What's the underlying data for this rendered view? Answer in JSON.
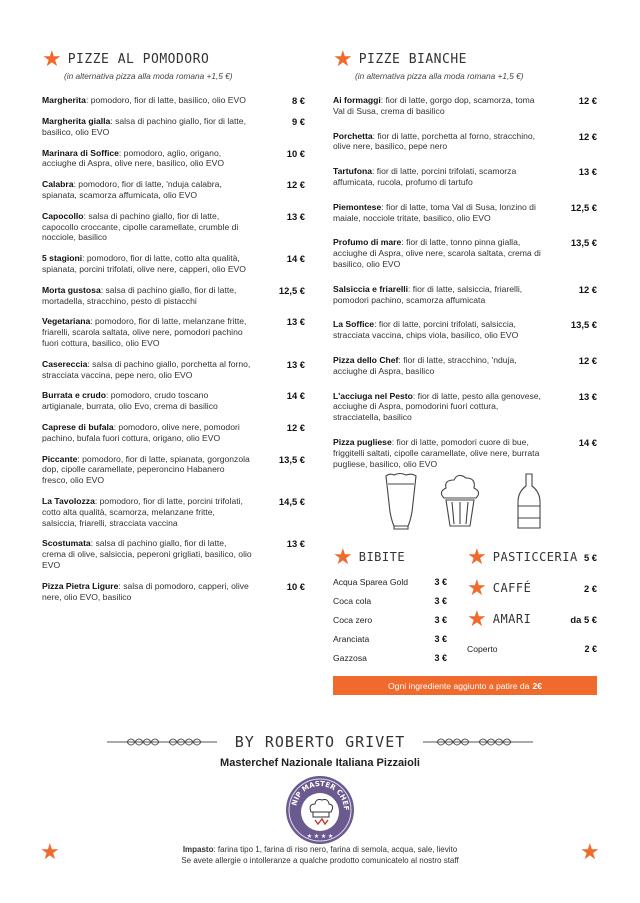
{
  "pizze_al_pomodoro": {
    "title": "Pizze al pomodoro",
    "subtitle": "(in alternativa pizza alla moda romana +1,5 €)",
    "items": [
      {
        "name": "Margherita",
        "desc": ": pomodoro, fior di latte, basilico, olio EVO",
        "price": "8 €"
      },
      {
        "name": "Margherita gialla",
        "desc": ": salsa di pachino giallo, fior di latte, basilico, olio EVO",
        "price": "9 €"
      },
      {
        "name": "Marinara di Soffice",
        "desc": ": pomodoro, aglio, origano, acciughe di Aspra, olive nere, basilico, olio EVO",
        "price": "10 €"
      },
      {
        "name": "Calabra",
        "desc": ": pomodoro, fior di latte, 'nduja calabra, spianata, scamorza affumicata, olio EVO",
        "price": "12 €"
      },
      {
        "name": "Capocollo",
        "desc": ": salsa di pachino giallo, fior di latte, capocollo croccante, cipolle caramellate, crumble di nocciole, basilico",
        "price": "13 €"
      },
      {
        "name": "5 stagioni",
        "desc": ": pomodoro, fior di latte, cotto alta qualità, spianata, porcini trifolati, olive nere, capperi, olio EVO",
        "price": "14 €"
      },
      {
        "name": "Morta gustosa",
        "desc": ": salsa di pachino giallo, fior di latte, mortadella, stracchino, pesto di pistacchi",
        "price": "12,5 €"
      },
      {
        "name": "Vegetariana",
        "desc": ": pomodoro, fior di latte, melanzane fritte, friarelli, scarola saltata, olive nere, pomodori pachino fuori cottura, basilico, olio EVO",
        "price": "13 €"
      },
      {
        "name": "Casereccia",
        "desc": ": salsa di pachino giallo, porchetta al forno, stracciata vaccina, pepe nero, olio EVO",
        "price": "13 €"
      },
      {
        "name": "Burrata e crudo",
        "desc": ": pomodoro, crudo toscano artigianale, burrata, olio Evo, crema di basilico",
        "price": "14 €"
      },
      {
        "name": "Caprese di bufala",
        "desc": ": pomodoro, olive nere, pomodori pachino, bufala fuori cottura, origano, olio EVO",
        "price": "12 €"
      },
      {
        "name": "Piccante",
        "desc": ": pomodoro, fior di latte, spianata, gorgonzola dop, cipolle caramellate, peperoncino Habanero fresco, olio EVO",
        "price": "13,5 €"
      },
      {
        "name": "La Tavolozza",
        "desc": ": pomodoro, fior di latte, porcini trifolati, cotto alta qualità, scamorza, melanzane fritte, salsiccia, friarelli, stracciata vaccina",
        "price": "14,5 €"
      },
      {
        "name": "Scostumata",
        "desc": ": salsa di pachino giallo, fior di latte, crema di olive, salsiccia, peperoni grigliati, basilico, olio EVO",
        "price": "13 €"
      },
      {
        "name": "Pizza Pietra Ligure",
        "desc": ": salsa di pomodoro, capperi, olive nere, olio EVO, basilico",
        "price": "10 €"
      }
    ]
  },
  "pizze_bianche": {
    "title": "Pizze bianche",
    "subtitle": "(in alternativa pizza alla moda romana +1,5 €)",
    "items": [
      {
        "name": "Ai formaggi",
        "desc": ": fior di latte, gorgo dop, scamorza, toma Val di Susa, crema di basilico",
        "price": "12 €"
      },
      {
        "name": "Porchetta",
        "desc": ": fior di latte, porchetta al forno, stracchino, olive nere, basilico, pepe nero",
        "price": "12 €"
      },
      {
        "name": "Tartufona",
        "desc": ": fior di latte, porcini trifolati, scamorza affumicata, rucola, profumo di tartufo",
        "price": "13 €"
      },
      {
        "name": "Piemontese",
        "desc": ": fior di latte, toma Val di Susa, lonzino di maiale, nocciole tritate, basilico, olio EVO",
        "price": "12,5 €"
      },
      {
        "name": "Profumo di mare",
        "desc": ": fior di latte, tonno pinna gialla, acciughe di Aspra, olive nere, scarola saltata, crema di basilico, olio EVO",
        "price": "13,5 €"
      },
      {
        "name": "Salsiccia e friarelli",
        "desc": ": fior di latte, salsiccia, friarelli, pomodori pachino, scamorza affumicata",
        "price": "12 €"
      },
      {
        "name": "La Soffice",
        "desc": ": fior di latte, porcini trifolati, salsiccia, stracciata vaccina, chips viola, basilico, olio EVO",
        "price": "13,5 €"
      },
      {
        "name": "Pizza dello Chef",
        "desc": ": fior di latte, stracchino, 'nduja, acciughe di Aspra, basilico",
        "price": "12 €"
      },
      {
        "name": "L'acciuga nel Pesto",
        "desc": ": fior di latte, pesto alla genovese, acciughe di Aspra, pomodorini fuori cottura, stracciatella, basilico",
        "price": "13 €"
      },
      {
        "name": "Pizza pugliese",
        "desc": ": fior di latte, pomodori cuore di bue, friggitelli saltati, cipolle caramellate, olive nere, burrata pugliese, basilico, olio EVO",
        "price": "14 €"
      }
    ]
  },
  "drinks": {
    "bibite": {
      "title": "Bibite",
      "items": [
        {
          "name": "Acqua Sparea Gold",
          "price": "3 €"
        },
        {
          "name": "Coca cola",
          "price": "3 €"
        },
        {
          "name": "Coca zero",
          "price": "3 €"
        },
        {
          "name": "Aranciata",
          "price": "3 €"
        },
        {
          "name": "Gazzosa",
          "price": "3 €"
        }
      ]
    },
    "pasticceria": {
      "title": "Pasticceria",
      "price": "5 €"
    },
    "caffe": {
      "title": "Caffé",
      "price": "2 €"
    },
    "amari": {
      "title": "Amari",
      "price": "da 5 €"
    },
    "coperto": {
      "label": "Coperto",
      "price": "2 €"
    }
  },
  "banner": {
    "text": "Ogni ingrediente aggiunto a patire da",
    "amount": "2€"
  },
  "footer": {
    "by_line": "By Roberto Grivet",
    "masterchef": "Masterchef Nazionale Italiana Pizzaioli",
    "badge_text": "NIP MASTER CHEF",
    "impasto_label": "Impasto",
    "impasto_text": ": farina tipo 1, farina di riso nero, farina di semola, acqua, sale, lievito",
    "allergy_note": "Se avete allergie o intolleranze a qualche prodotto comunicatelo al nostro staff"
  },
  "colors": {
    "accent": "#ef6a2c",
    "badge_ring": "#6b5a8e"
  }
}
